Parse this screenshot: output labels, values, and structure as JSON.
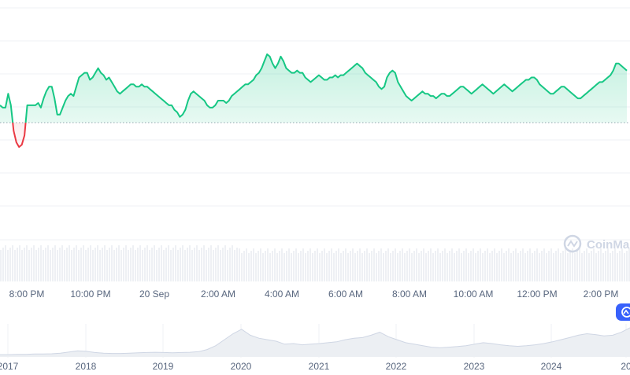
{
  "chart_data": {
    "type": "line",
    "title": "",
    "xlabel": "",
    "ylabel": "",
    "grid": true,
    "baseline": 0.505,
    "ylim": [
      0,
      1
    ],
    "x_ticks": [
      "8:00 PM",
      "10:00 PM",
      "20 Sep",
      "2:00 AM",
      "4:00 AM",
      "6:00 AM",
      "8:00 AM",
      "10:00 AM",
      "12:00 PM",
      "2:00 PM"
    ],
    "above_color": "#16c784",
    "below_color": "#ea3943",
    "series": [
      {
        "name": "",
        "values": [
          0.58,
          0.57,
          0.57,
          0.63,
          0.58,
          0.47,
          0.42,
          0.4,
          0.41,
          0.45,
          0.58,
          0.58,
          0.58,
          0.58,
          0.59,
          0.57,
          0.61,
          0.64,
          0.66,
          0.66,
          0.61,
          0.54,
          0.54,
          0.57,
          0.6,
          0.62,
          0.63,
          0.62,
          0.66,
          0.7,
          0.71,
          0.72,
          0.72,
          0.69,
          0.7,
          0.72,
          0.74,
          0.72,
          0.71,
          0.69,
          0.7,
          0.68,
          0.66,
          0.64,
          0.63,
          0.64,
          0.65,
          0.66,
          0.67,
          0.67,
          0.66,
          0.66,
          0.67,
          0.66,
          0.66,
          0.65,
          0.64,
          0.63,
          0.62,
          0.61,
          0.6,
          0.59,
          0.58,
          0.58,
          0.56,
          0.55,
          0.53,
          0.54,
          0.56,
          0.6,
          0.63,
          0.64,
          0.63,
          0.62,
          0.61,
          0.6,
          0.58,
          0.57,
          0.57,
          0.58,
          0.6,
          0.6,
          0.6,
          0.59,
          0.6,
          0.62,
          0.63,
          0.64,
          0.65,
          0.66,
          0.67,
          0.67,
          0.68,
          0.69,
          0.71,
          0.72,
          0.74,
          0.77,
          0.8,
          0.79,
          0.76,
          0.74,
          0.76,
          0.79,
          0.77,
          0.74,
          0.73,
          0.72,
          0.72,
          0.73,
          0.72,
          0.72,
          0.7,
          0.69,
          0.68,
          0.69,
          0.7,
          0.71,
          0.7,
          0.69,
          0.69,
          0.7,
          0.7,
          0.71,
          0.7,
          0.71,
          0.71,
          0.72,
          0.73,
          0.74,
          0.75,
          0.76,
          0.75,
          0.74,
          0.72,
          0.71,
          0.7,
          0.69,
          0.68,
          0.66,
          0.65,
          0.66,
          0.7,
          0.72,
          0.73,
          0.72,
          0.68,
          0.66,
          0.64,
          0.62,
          0.61,
          0.6,
          0.61,
          0.62,
          0.63,
          0.64,
          0.63,
          0.63,
          0.62,
          0.62,
          0.61,
          0.62,
          0.63,
          0.63,
          0.62,
          0.62,
          0.63,
          0.64,
          0.65,
          0.66,
          0.66,
          0.65,
          0.64,
          0.63,
          0.64,
          0.65,
          0.66,
          0.67,
          0.66,
          0.65,
          0.64,
          0.63,
          0.64,
          0.65,
          0.66,
          0.67,
          0.66,
          0.65,
          0.64,
          0.65,
          0.66,
          0.67,
          0.68,
          0.69,
          0.69,
          0.7,
          0.7,
          0.69,
          0.67,
          0.66,
          0.65,
          0.64,
          0.63,
          0.63,
          0.64,
          0.65,
          0.66,
          0.66,
          0.65,
          0.64,
          0.63,
          0.62,
          0.61,
          0.61,
          0.62,
          0.63,
          0.64,
          0.65,
          0.66,
          0.67,
          0.68,
          0.68,
          0.69,
          0.7,
          0.71,
          0.73,
          0.76,
          0.76,
          0.75,
          0.74,
          0.73
        ]
      }
    ],
    "overview": {
      "x_ticks": [
        "2017",
        "2018",
        "2019",
        "2020",
        "2021",
        "2022",
        "2023",
        "2024",
        "20"
      ],
      "values": [
        0.05,
        0.05,
        0.06,
        0.06,
        0.07,
        0.07,
        0.08,
        0.1,
        0.14,
        0.18,
        0.16,
        0.12,
        0.1,
        0.09,
        0.09,
        0.1,
        0.11,
        0.12,
        0.13,
        0.12,
        0.11,
        0.12,
        0.13,
        0.15,
        0.22,
        0.35,
        0.55,
        0.75,
        0.9,
        0.7,
        0.6,
        0.55,
        0.5,
        0.4,
        0.42,
        0.38,
        0.4,
        0.42,
        0.45,
        0.48,
        0.55,
        0.6,
        0.62,
        0.7,
        0.8,
        0.65,
        0.55,
        0.45,
        0.4,
        0.35,
        0.3,
        0.28,
        0.3,
        0.32,
        0.35,
        0.4,
        0.45,
        0.42,
        0.38,
        0.35,
        0.33,
        0.35,
        0.38,
        0.42,
        0.48,
        0.55,
        0.62,
        0.7,
        0.75,
        0.72,
        0.68,
        0.7,
        0.8,
        0.95
      ]
    }
  },
  "watermark": {
    "text": "CoinMarketCap"
  },
  "colors": {
    "grid": "#eff2f5",
    "axis_text": "#58667e",
    "badge": "#3861fb"
  }
}
